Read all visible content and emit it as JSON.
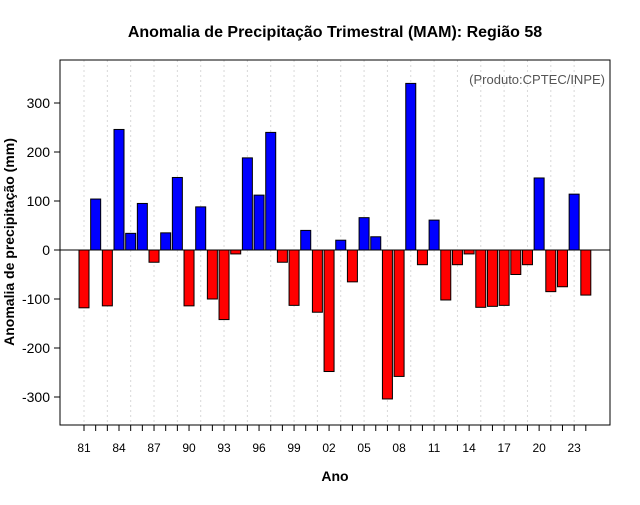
{
  "chart_data": {
    "type": "bar",
    "title": "Anomalia de Precipitação Trimestral (MAM): Região 58",
    "annotation": "(Produto:CPTEC/INPE)",
    "xlabel": "Ano",
    "ylabel": "Anomalia de precipitação (mm)",
    "ylim": [
      -355,
      390
    ],
    "yticks": [
      -300,
      -200,
      -100,
      0,
      100,
      200,
      300
    ],
    "xtick_labels": [
      "81",
      "84",
      "87",
      "90",
      "93",
      "96",
      "99",
      "02",
      "05",
      "08",
      "11",
      "14",
      "17",
      "20",
      "23"
    ],
    "categories": [
      1981,
      1982,
      1983,
      1984,
      1985,
      1986,
      1987,
      1988,
      1989,
      1990,
      1991,
      1992,
      1993,
      1994,
      1995,
      1996,
      1997,
      1998,
      1999,
      2000,
      2001,
      2002,
      2003,
      2004,
      2005,
      2006,
      2007,
      2008,
      2009,
      2010,
      2011,
      2012,
      2013,
      2014,
      2015,
      2016,
      2017,
      2018,
      2019,
      2020,
      2021,
      2022,
      2023,
      2024
    ],
    "values": [
      -118,
      104,
      -114,
      246,
      34,
      95,
      -25,
      35,
      148,
      -114,
      88,
      -100,
      -142,
      -8,
      188,
      112,
      240,
      -25,
      -113,
      40,
      -127,
      -248,
      20,
      -65,
      66,
      27,
      -304,
      -258,
      340,
      -30,
      61,
      -102,
      -30,
      -8,
      -117,
      -115,
      -113,
      -50,
      -30,
      147,
      -85,
      -75,
      114,
      -92
    ],
    "colors": {
      "positive": "#0000ff",
      "negative": "#ff0000"
    },
    "grid": "vertical dotted"
  }
}
